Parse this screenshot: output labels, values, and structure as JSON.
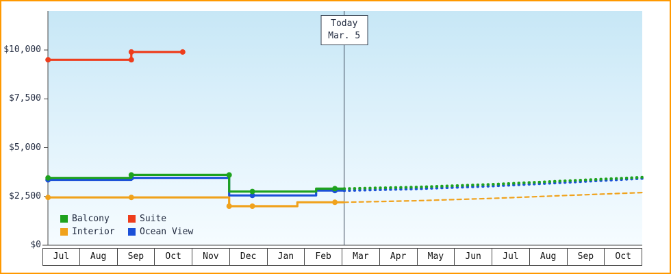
{
  "page": {
    "border_color": "#ff9900",
    "background": "#ffffff",
    "axis_color": "#444444",
    "today_line_color": "#3c4a5a"
  },
  "chart_data": {
    "type": "line",
    "title": "",
    "months": [
      "Jul",
      "Aug",
      "Sep",
      "Oct",
      "Nov",
      "Dec",
      "Jan",
      "Feb",
      "Mar",
      "Apr",
      "May",
      "Jun",
      "Jul",
      "Aug",
      "Sep",
      "Oct"
    ],
    "ylim": [
      0,
      12000
    ],
    "yticks": [
      0,
      2500,
      5000,
      7500,
      10000
    ],
    "ytick_labels": [
      "$0",
      "$2,500",
      "$5,000",
      "$7,500",
      "$10,000"
    ],
    "grid": false,
    "legend_position": "bottom-left",
    "today": {
      "x": 8.05,
      "line1": "Today",
      "line2": "Mar. 5"
    },
    "legend_order": [
      "Balcony",
      "Suite",
      "Interior",
      "Ocean View"
    ],
    "series": [
      {
        "name": "Balcony",
        "color": "#1ea21e",
        "solid": [
          [
            0.15,
            3450
          ],
          [
            2.37,
            3450
          ],
          [
            2.37,
            3600
          ],
          [
            4.98,
            3600
          ],
          [
            4.98,
            2750
          ],
          [
            7.3,
            2750
          ],
          [
            7.3,
            2900
          ],
          [
            8.05,
            2900
          ]
        ],
        "markers": [
          [
            0.15,
            3450
          ],
          [
            2.37,
            3600
          ],
          [
            4.98,
            3600
          ],
          [
            5.6,
            2750
          ],
          [
            7.8,
            2900
          ]
        ],
        "dashed": [
          [
            8.05,
            2900
          ],
          [
            10,
            2980
          ],
          [
            12,
            3120
          ],
          [
            14,
            3300
          ],
          [
            16,
            3480
          ]
        ],
        "dash_style": "dot"
      },
      {
        "name": "Suite",
        "color": "#ee3d1c",
        "solid": [
          [
            0.15,
            9500
          ],
          [
            2.37,
            9500
          ],
          [
            2.37,
            9900
          ],
          [
            3.74,
            9900
          ]
        ],
        "markers": [
          [
            0.15,
            9500
          ],
          [
            2.37,
            9500
          ],
          [
            2.37,
            9900
          ],
          [
            3.74,
            9900
          ]
        ],
        "dashed": [],
        "dash_style": "none"
      },
      {
        "name": "Interior",
        "color": "#f0a21c",
        "solid": [
          [
            0.15,
            2450
          ],
          [
            4.98,
            2450
          ],
          [
            4.98,
            2000
          ],
          [
            6.8,
            2000
          ],
          [
            6.8,
            2200
          ],
          [
            8.05,
            2200
          ]
        ],
        "markers": [
          [
            0.15,
            2450
          ],
          [
            2.37,
            2450
          ],
          [
            4.98,
            2000
          ],
          [
            5.6,
            2000
          ],
          [
            7.8,
            2200
          ]
        ],
        "dashed": [
          [
            8.05,
            2200
          ],
          [
            10,
            2280
          ],
          [
            12,
            2400
          ],
          [
            14,
            2550
          ],
          [
            16,
            2700
          ]
        ],
        "dash_style": "dash"
      },
      {
        "name": "Ocean View",
        "color": "#1b50d8",
        "solid": [
          [
            0.15,
            3350
          ],
          [
            2.37,
            3350
          ],
          [
            2.37,
            3450
          ],
          [
            4.98,
            3450
          ],
          [
            4.98,
            2550
          ],
          [
            7.3,
            2550
          ],
          [
            7.3,
            2800
          ],
          [
            8.05,
            2800
          ]
        ],
        "markers": [
          [
            0.15,
            3350
          ],
          [
            2.37,
            3450
          ],
          [
            5.6,
            2550
          ],
          [
            7.8,
            2800
          ]
        ],
        "dashed": [
          [
            8.05,
            2800
          ],
          [
            10,
            2890
          ],
          [
            12,
            3030
          ],
          [
            14,
            3220
          ],
          [
            16,
            3420
          ]
        ],
        "dash_style": "dot"
      }
    ]
  }
}
